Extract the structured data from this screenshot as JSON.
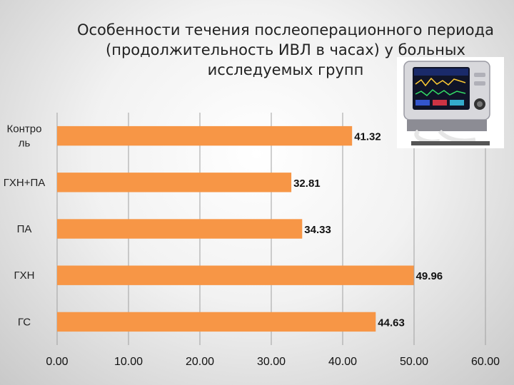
{
  "title_lines": [
    "Особенности течения послеоперационного периода",
    "(продолжительность ИВЛ в часах) у больных",
    "исследуемых групп"
  ],
  "chart_data": {
    "type": "bar",
    "orientation": "horizontal",
    "title": "Особенности течения послеоперационного периода (продолжительность ИВЛ в часах) у больных исследуемых групп",
    "categories": [
      "Контроль",
      "ГХН+ПА",
      "ПА",
      "ГХН",
      "ГС"
    ],
    "category_label_lines": [
      [
        "Контро",
        "ль"
      ],
      [
        "ГХН+ПА"
      ],
      [
        "ПА"
      ],
      [
        "ГХН"
      ],
      [
        "ГС"
      ]
    ],
    "values": [
      41.32,
      32.81,
      34.33,
      49.96,
      44.63
    ],
    "value_labels": [
      "41.32",
      "32.81",
      "34.33",
      "49.96",
      "44.63"
    ],
    "xlim": [
      0,
      60
    ],
    "xticks": [
      0,
      10,
      20,
      30,
      40,
      50,
      60
    ],
    "xtick_labels": [
      "0.00",
      "10.00",
      "20.00",
      "30.00",
      "40.00",
      "50.00",
      "60.00"
    ],
    "xlabel": "",
    "ylabel": "",
    "grid": "vertical",
    "legend": "none",
    "bar_color": "#F79646"
  },
  "image": {
    "icon": "ventilator-machine-photo"
  }
}
